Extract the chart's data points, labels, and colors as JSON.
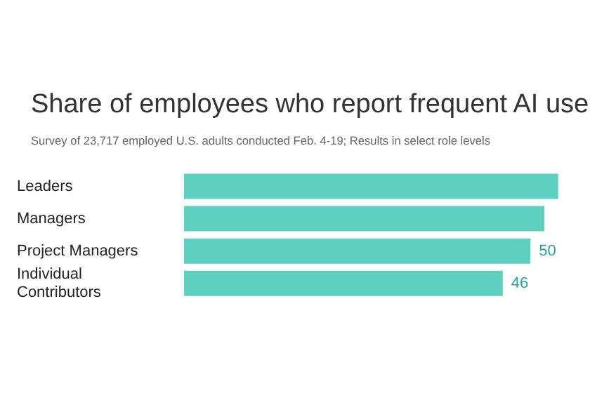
{
  "chart_data": {
    "type": "bar",
    "orientation": "horizontal",
    "title": "Share of employees who report frequent AI use",
    "subtitle": "Survey of 23,717 employed U.S. adults conducted Feb. 4-19; Results in select role levels",
    "categories": [
      "Leaders",
      "Managers",
      "Project Managers",
      "Individual Contributors"
    ],
    "series": [
      {
        "color": "#5fd0c0",
        "values": [
          54,
          52,
          50,
          46
        ],
        "value_labels": [
          null,
          null,
          "50",
          "46"
        ]
      }
    ],
    "legend": false
  }
}
